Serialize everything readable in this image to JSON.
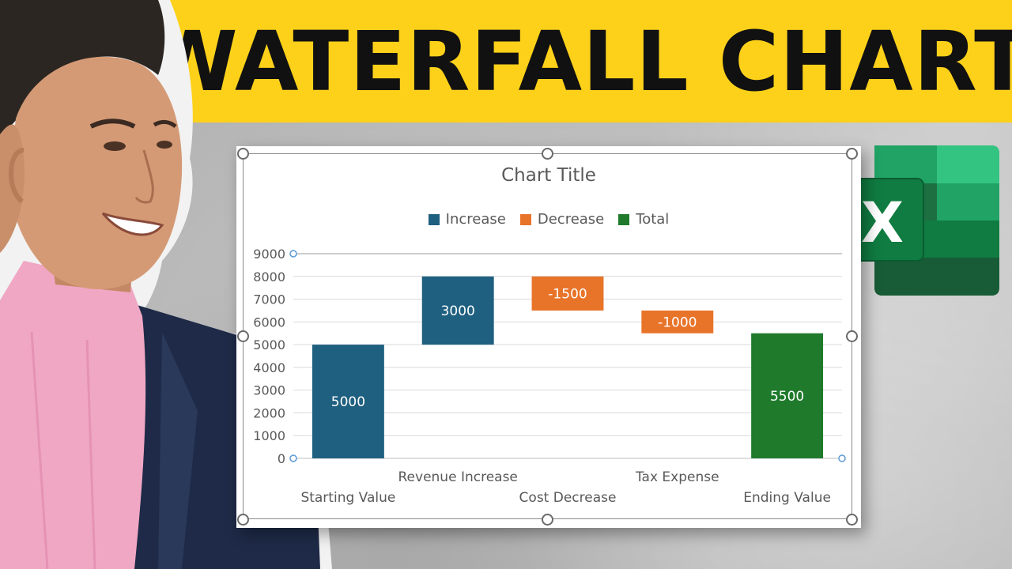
{
  "header": {
    "title": "WATERFALL CHART"
  },
  "brand": {
    "icon": "excel-icon",
    "letter": "X"
  },
  "colors": {
    "banner": "#fdd11a",
    "increase": "#1f5f80",
    "decrease": "#e8742a",
    "total": "#1f7a2c",
    "excel_dark": "#1d6f42",
    "excel_mid": "#21a366",
    "excel_light": "#33c481",
    "excel_deep": "#185c37"
  },
  "chart_data": {
    "type": "bar",
    "subtype": "waterfall",
    "title": "Chart Title",
    "legend": [
      {
        "label": "Increase",
        "color": "#1f5f80"
      },
      {
        "label": "Decrease",
        "color": "#e8742a"
      },
      {
        "label": "Total",
        "color": "#1f7a2c"
      }
    ],
    "legend_position": "top",
    "categories": [
      "Starting Value",
      "Revenue Increase",
      "Cost Decrease",
      "Tax Expense",
      "Ending Value"
    ],
    "values": [
      5000,
      3000,
      -1500,
      -1000,
      5500
    ],
    "value_labels": [
      "5000",
      "3000",
      "-1500",
      "-1000",
      "5500"
    ],
    "kinds": [
      "increase",
      "increase",
      "decrease",
      "decrease",
      "total"
    ],
    "ylim": [
      0,
      9000
    ],
    "yticks": [
      "0",
      "1000",
      "2000",
      "3000",
      "4000",
      "5000",
      "6000",
      "7000",
      "8000",
      "9000"
    ],
    "grid": true
  }
}
